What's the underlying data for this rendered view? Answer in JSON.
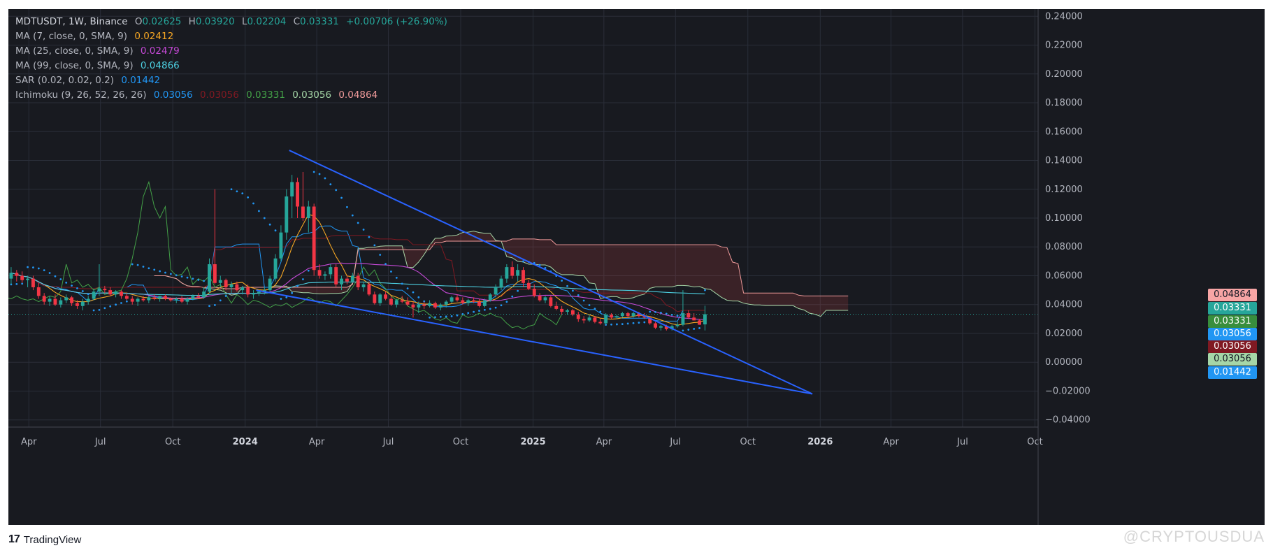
{
  "legend": {
    "symbol": "MDTUSDT, 1W, Binance",
    "open_label": "O",
    "open": "0.02625",
    "high_label": "H",
    "high": "0.03920",
    "low_label": "L",
    "low": "0.02204",
    "close_label": "C",
    "close": "0.03331",
    "change": "+0.00706 (+26.90%)",
    "ma7_label": "MA (7, close, 0, SMA, 9)",
    "ma7_value": "0.02412",
    "ma25_label": "MA (25, close, 0, SMA, 9)",
    "ma25_value": "0.02479",
    "ma99_label": "MA (99, close, 0, SMA, 9)",
    "ma99_value": "0.04866",
    "sar_label": "SAR (0.02, 0.02, 0.2)",
    "sar_value": "0.01442",
    "ichimoku_label": "Ichimoku (9, 26, 52, 26, 26)",
    "ichimoku_values": [
      "0.03056",
      "0.03056",
      "0.03331",
      "0.03056",
      "0.04864"
    ]
  },
  "price_boxes": [
    {
      "value": "0.04864",
      "bg": "#f7a5a5",
      "fg": "#131722"
    },
    {
      "value": "0.03331",
      "bg": "#26a69a",
      "fg": "#ffffff"
    },
    {
      "value": "0.03331",
      "bg": "#388e3c",
      "fg": "#ffffff"
    },
    {
      "value": "0.03056",
      "bg": "#2196f3",
      "fg": "#ffffff"
    },
    {
      "value": "0.03056",
      "bg": "#801922",
      "fg": "#ffffff"
    },
    {
      "value": "0.03056",
      "bg": "#a5d6a7",
      "fg": "#131722"
    },
    {
      "value": "0.01442",
      "bg": "#2196f3",
      "fg": "#ffffff"
    }
  ],
  "colors": {
    "background": "#181a20",
    "grid": "#2a2e39",
    "text": "#b2b5be",
    "up": "#26a69a",
    "down": "#ef5350",
    "up_candle": "#26a69a",
    "down_candle": "#f23645",
    "ma7": "#f5a623",
    "ma25": "#c549d6",
    "ma99": "#4dd0e1",
    "sar": "#2196f3",
    "conversion": "#2196f3",
    "base": "#801922",
    "lagging": "#43a047",
    "leading_a": "#a5d6a7",
    "leading_b": "#ef9a9a",
    "trendline": "#2962ff"
  },
  "footer": {
    "brand": "TradingView",
    "logo_mark": "17",
    "watermark": "@CRYPTOUSDUA"
  },
  "chart_data": {
    "type": "candlestick",
    "ylim": [
      -0.045,
      0.245
    ],
    "yticks": [
      0.24,
      0.22,
      0.2,
      0.18,
      0.16,
      0.14,
      0.12,
      0.1,
      0.08,
      0.06,
      0.04,
      0.02,
      0.0,
      -0.02,
      -0.04
    ],
    "ytick_labels": [
      "0.24000",
      "0.22000",
      "0.20000",
      "0.18000",
      "0.16000",
      "0.14000",
      "0.12000",
      "0.10000",
      "0.08000",
      "0.06000",
      "0.04000",
      "0.02000",
      "0.00000",
      "−0.02000",
      "−0.04000"
    ],
    "xlim": [
      "2023-03-06",
      "2026-10-05"
    ],
    "xticks": [
      {
        "label": "Apr",
        "date": "2023-04-01"
      },
      {
        "label": "Jul",
        "date": "2023-07-01"
      },
      {
        "label": "Oct",
        "date": "2023-10-01"
      },
      {
        "label": "2024",
        "date": "2024-01-01",
        "bold": true
      },
      {
        "label": "Apr",
        "date": "2024-04-01"
      },
      {
        "label": "Jul",
        "date": "2024-07-01"
      },
      {
        "label": "Oct",
        "date": "2024-10-01"
      },
      {
        "label": "2025",
        "date": "2025-01-01",
        "bold": true
      },
      {
        "label": "Apr",
        "date": "2025-04-01"
      },
      {
        "label": "Jul",
        "date": "2025-07-01"
      },
      {
        "label": "Oct",
        "date": "2025-10-01"
      },
      {
        "label": "2026",
        "date": "2026-01-01",
        "bold": true
      },
      {
        "label": "Apr",
        "date": "2026-04-01"
      },
      {
        "label": "Jul",
        "date": "2026-07-01"
      },
      {
        "label": "Oct",
        "date": "2026-10-01"
      }
    ],
    "current_price": 0.03331,
    "candles": [
      [
        "2023-03-06",
        0.058,
        0.066,
        0.054,
        0.062
      ],
      [
        "2023-03-13",
        0.062,
        0.064,
        0.056,
        0.06
      ],
      [
        "2023-03-20",
        0.06,
        0.063,
        0.055,
        0.057
      ],
      [
        "2023-03-27",
        0.057,
        0.06,
        0.052,
        0.058
      ],
      [
        "2023-04-03",
        0.058,
        0.06,
        0.05,
        0.052
      ],
      [
        "2023-04-10",
        0.052,
        0.055,
        0.044,
        0.046
      ],
      [
        "2023-04-17",
        0.046,
        0.048,
        0.04,
        0.042
      ],
      [
        "2023-04-24",
        0.042,
        0.046,
        0.039,
        0.044
      ],
      [
        "2023-05-01",
        0.044,
        0.047,
        0.039,
        0.04
      ],
      [
        "2023-05-08",
        0.04,
        0.045,
        0.038,
        0.043
      ],
      [
        "2023-05-15",
        0.043,
        0.047,
        0.041,
        0.045
      ],
      [
        "2023-05-22",
        0.045,
        0.046,
        0.039,
        0.041
      ],
      [
        "2023-05-29",
        0.041,
        0.043,
        0.037,
        0.039
      ],
      [
        "2023-06-05",
        0.039,
        0.044,
        0.036,
        0.042
      ],
      [
        "2023-06-12",
        0.042,
        0.046,
        0.04,
        0.044
      ],
      [
        "2023-06-19",
        0.044,
        0.051,
        0.043,
        0.049
      ],
      [
        "2023-06-26",
        0.049,
        0.068,
        0.046,
        0.051
      ],
      [
        "2023-07-03",
        0.051,
        0.053,
        0.048,
        0.05
      ],
      [
        "2023-07-10",
        0.05,
        0.052,
        0.046,
        0.047
      ],
      [
        "2023-07-17",
        0.047,
        0.05,
        0.045,
        0.049
      ],
      [
        "2023-07-24",
        0.049,
        0.05,
        0.044,
        0.046
      ],
      [
        "2023-07-31",
        0.046,
        0.048,
        0.043,
        0.044
      ],
      [
        "2023-08-07",
        0.044,
        0.046,
        0.04,
        0.042
      ],
      [
        "2023-08-14",
        0.042,
        0.045,
        0.039,
        0.044
      ],
      [
        "2023-08-21",
        0.044,
        0.046,
        0.042,
        0.043
      ],
      [
        "2023-08-28",
        0.043,
        0.046,
        0.041,
        0.045
      ],
      [
        "2023-09-04",
        0.045,
        0.047,
        0.043,
        0.044
      ],
      [
        "2023-09-11",
        0.044,
        0.046,
        0.042,
        0.046
      ],
      [
        "2023-09-18",
        0.046,
        0.047,
        0.043,
        0.044
      ],
      [
        "2023-09-25",
        0.044,
        0.045,
        0.042,
        0.043
      ],
      [
        "2023-10-02",
        0.043,
        0.045,
        0.041,
        0.044
      ],
      [
        "2023-10-09",
        0.044,
        0.046,
        0.041,
        0.042
      ],
      [
        "2023-10-16",
        0.042,
        0.045,
        0.04,
        0.044
      ],
      [
        "2023-10-23",
        0.044,
        0.047,
        0.043,
        0.046
      ],
      [
        "2023-10-30",
        0.046,
        0.048,
        0.044,
        0.045
      ],
      [
        "2023-11-06",
        0.045,
        0.052,
        0.044,
        0.049
      ],
      [
        "2023-11-13",
        0.049,
        0.072,
        0.048,
        0.068
      ],
      [
        "2023-11-20",
        0.068,
        0.12,
        0.054,
        0.055
      ],
      [
        "2023-11-27",
        0.055,
        0.06,
        0.052,
        0.057
      ],
      [
        "2023-12-04",
        0.057,
        0.058,
        0.05,
        0.052
      ],
      [
        "2023-12-11",
        0.052,
        0.056,
        0.048,
        0.054
      ],
      [
        "2023-12-18",
        0.054,
        0.056,
        0.049,
        0.05
      ],
      [
        "2023-12-25",
        0.05,
        0.053,
        0.047,
        0.052
      ],
      [
        "2024-01-01",
        0.052,
        0.054,
        0.045,
        0.047
      ],
      [
        "2024-01-08",
        0.047,
        0.05,
        0.044,
        0.048
      ],
      [
        "2024-01-15",
        0.048,
        0.05,
        0.046,
        0.049
      ],
      [
        "2024-01-22",
        0.049,
        0.052,
        0.047,
        0.05
      ],
      [
        "2024-01-29",
        0.05,
        0.06,
        0.049,
        0.058
      ],
      [
        "2024-02-05",
        0.058,
        0.075,
        0.056,
        0.072
      ],
      [
        "2024-02-12",
        0.072,
        0.095,
        0.07,
        0.09
      ],
      [
        "2024-02-19",
        0.09,
        0.12,
        0.085,
        0.115
      ],
      [
        "2024-02-26",
        0.115,
        0.13,
        0.1,
        0.125
      ],
      [
        "2024-03-04",
        0.125,
        0.128,
        0.1,
        0.108
      ],
      [
        "2024-03-11",
        0.108,
        0.132,
        0.098,
        0.1
      ],
      [
        "2024-03-18",
        0.1,
        0.112,
        0.09,
        0.108
      ],
      [
        "2024-03-25",
        0.108,
        0.11,
        0.06,
        0.064
      ],
      [
        "2024-04-01",
        0.064,
        0.068,
        0.058,
        0.06
      ],
      [
        "2024-04-08",
        0.06,
        0.063,
        0.057,
        0.061
      ],
      [
        "2024-04-15",
        0.061,
        0.068,
        0.058,
        0.066
      ],
      [
        "2024-04-22",
        0.066,
        0.068,
        0.052,
        0.054
      ],
      [
        "2024-04-29",
        0.054,
        0.06,
        0.05,
        0.058
      ],
      [
        "2024-05-06",
        0.058,
        0.06,
        0.054,
        0.056
      ],
      [
        "2024-05-13",
        0.056,
        0.062,
        0.055,
        0.06
      ],
      [
        "2024-05-20",
        0.06,
        0.062,
        0.05,
        0.052
      ],
      [
        "2024-05-27",
        0.052,
        0.056,
        0.049,
        0.054
      ],
      [
        "2024-06-03",
        0.054,
        0.056,
        0.046,
        0.047
      ],
      [
        "2024-06-10",
        0.047,
        0.049,
        0.04,
        0.041
      ],
      [
        "2024-06-17",
        0.041,
        0.048,
        0.039,
        0.047
      ],
      [
        "2024-06-24",
        0.047,
        0.049,
        0.043,
        0.044
      ],
      [
        "2024-07-01",
        0.044,
        0.046,
        0.039,
        0.04
      ],
      [
        "2024-07-08",
        0.04,
        0.044,
        0.038,
        0.043
      ],
      [
        "2024-07-15",
        0.043,
        0.046,
        0.041,
        0.042
      ],
      [
        "2024-07-22",
        0.042,
        0.045,
        0.039,
        0.04
      ],
      [
        "2024-07-29",
        0.04,
        0.042,
        0.031,
        0.038
      ],
      [
        "2024-08-05",
        0.038,
        0.042,
        0.034,
        0.04
      ],
      [
        "2024-08-12",
        0.04,
        0.042,
        0.037,
        0.039
      ],
      [
        "2024-08-19",
        0.039,
        0.043,
        0.038,
        0.041
      ],
      [
        "2024-08-26",
        0.041,
        0.042,
        0.037,
        0.038
      ],
      [
        "2024-09-02",
        0.038,
        0.041,
        0.036,
        0.04
      ],
      [
        "2024-09-09",
        0.04,
        0.043,
        0.038,
        0.042
      ],
      [
        "2024-09-16",
        0.042,
        0.046,
        0.041,
        0.045
      ],
      [
        "2024-09-23",
        0.045,
        0.047,
        0.042,
        0.043
      ],
      [
        "2024-09-30",
        0.043,
        0.045,
        0.04,
        0.041
      ],
      [
        "2024-10-07",
        0.041,
        0.044,
        0.039,
        0.043
      ],
      [
        "2024-10-14",
        0.043,
        0.045,
        0.041,
        0.042
      ],
      [
        "2024-10-21",
        0.042,
        0.044,
        0.038,
        0.039
      ],
      [
        "2024-10-28",
        0.039,
        0.044,
        0.038,
        0.043
      ],
      [
        "2024-11-04",
        0.043,
        0.048,
        0.042,
        0.047
      ],
      [
        "2024-11-11",
        0.047,
        0.054,
        0.045,
        0.052
      ],
      [
        "2024-11-18",
        0.052,
        0.06,
        0.05,
        0.058
      ],
      [
        "2024-11-25",
        0.058,
        0.068,
        0.055,
        0.066
      ],
      [
        "2024-12-02",
        0.066,
        0.07,
        0.058,
        0.06
      ],
      [
        "2024-12-09",
        0.06,
        0.068,
        0.056,
        0.064
      ],
      [
        "2024-12-16",
        0.064,
        0.066,
        0.052,
        0.055
      ],
      [
        "2024-12-23",
        0.055,
        0.057,
        0.05,
        0.051
      ],
      [
        "2024-12-30",
        0.051,
        0.054,
        0.045,
        0.046
      ],
      [
        "2025-01-06",
        0.046,
        0.048,
        0.042,
        0.043
      ],
      [
        "2025-01-13",
        0.043,
        0.046,
        0.041,
        0.045
      ],
      [
        "2025-01-20",
        0.045,
        0.046,
        0.038,
        0.039
      ],
      [
        "2025-01-27",
        0.039,
        0.042,
        0.036,
        0.037
      ],
      [
        "2025-02-03",
        0.037,
        0.039,
        0.033,
        0.035
      ],
      [
        "2025-02-10",
        0.035,
        0.037,
        0.033,
        0.036
      ],
      [
        "2025-02-17",
        0.036,
        0.037,
        0.032,
        0.033
      ],
      [
        "2025-02-24",
        0.033,
        0.035,
        0.028,
        0.03
      ],
      [
        "2025-03-03",
        0.03,
        0.032,
        0.027,
        0.029
      ],
      [
        "2025-03-10",
        0.029,
        0.033,
        0.028,
        0.031
      ],
      [
        "2025-03-17",
        0.031,
        0.032,
        0.027,
        0.028
      ],
      [
        "2025-03-24",
        0.028,
        0.03,
        0.026,
        0.027
      ],
      [
        "2025-03-31",
        0.027,
        0.034,
        0.026,
        0.033
      ],
      [
        "2025-04-07",
        0.033,
        0.034,
        0.03,
        0.031
      ],
      [
        "2025-04-14",
        0.031,
        0.033,
        0.03,
        0.032
      ],
      [
        "2025-04-21",
        0.032,
        0.035,
        0.031,
        0.034
      ],
      [
        "2025-04-28",
        0.034,
        0.035,
        0.031,
        0.032
      ],
      [
        "2025-05-05",
        0.032,
        0.035,
        0.031,
        0.034
      ],
      [
        "2025-05-12",
        0.034,
        0.035,
        0.031,
        0.032
      ],
      [
        "2025-05-19",
        0.032,
        0.034,
        0.03,
        0.031
      ],
      [
        "2025-05-26",
        0.031,
        0.032,
        0.026,
        0.027
      ],
      [
        "2025-06-02",
        0.027,
        0.028,
        0.023,
        0.024
      ],
      [
        "2025-06-09",
        0.024,
        0.026,
        0.022,
        0.025
      ],
      [
        "2025-06-16",
        0.025,
        0.026,
        0.022,
        0.023
      ],
      [
        "2025-06-23",
        0.023,
        0.026,
        0.022,
        0.025
      ],
      [
        "2025-06-30",
        0.025,
        0.028,
        0.024,
        0.026
      ],
      [
        "2025-07-07",
        0.026,
        0.05,
        0.025,
        0.034
      ],
      [
        "2025-07-14",
        0.034,
        0.036,
        0.03,
        0.031
      ],
      [
        "2025-07-21",
        0.031,
        0.034,
        0.029,
        0.029
      ],
      [
        "2025-07-28",
        0.029,
        0.03,
        0.026,
        0.026
      ],
      [
        "2025-08-04",
        0.02625,
        0.0392,
        0.02204,
        0.03331
      ]
    ],
    "trendlines": [
      {
        "from": [
          "2024-02-26",
          0.147
        ],
        "to": [
          "2025-12-22",
          -0.022
        ]
      },
      {
        "from": [
          "2024-01-15",
          0.05
        ],
        "to": [
          "2025-12-22",
          -0.022
        ]
      }
    ]
  }
}
